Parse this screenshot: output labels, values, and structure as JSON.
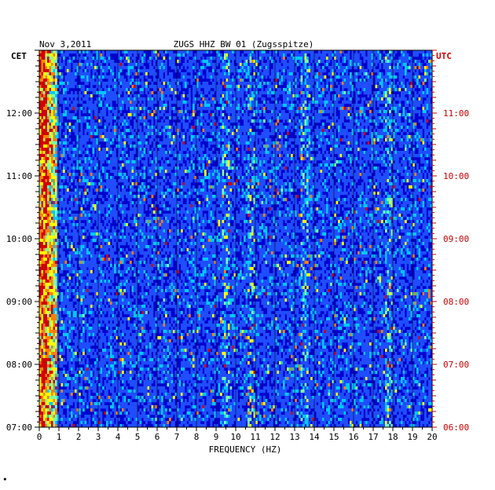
{
  "chart_data": {
    "type": "heatmap",
    "date": "Nov 3,2011",
    "title": "ZUGS HHZ BW 01 (Zugsspitze)",
    "xlabel": "FREQUENCY (HZ)",
    "left_axis_label": "CET",
    "right_axis_label": "UTC",
    "x_ticks": [
      "0",
      "1",
      "2",
      "3",
      "4",
      "5",
      "6",
      "7",
      "8",
      "9",
      "10",
      "11",
      "12",
      "13",
      "14",
      "15",
      "16",
      "17",
      "18",
      "19",
      "20"
    ],
    "xlim": [
      0,
      20
    ],
    "left_time_ticks": [
      "07:00",
      "08:00",
      "09:00",
      "10:00",
      "11:00",
      "12:00"
    ],
    "right_time_ticks": [
      "06:00",
      "07:00",
      "08:00",
      "09:00",
      "10:00",
      "11:00"
    ],
    "time_range_cet": [
      "07:00",
      "13:00"
    ],
    "time_range_utc": [
      "06:00",
      "12:00"
    ],
    "colorscale": [
      "#00007a",
      "#0000cc",
      "#1f4dff",
      "#00c8ff",
      "#7fffa0",
      "#ffff00",
      "#ff8000",
      "#d00000"
    ],
    "accent_colors": {
      "cet": "#000000",
      "utc": "#cc0000"
    },
    "grid": true,
    "strong_features_hz": [
      0.3,
      9.5,
      10.8,
      13.5,
      17.8
    ],
    "footer_mark": "∙"
  }
}
